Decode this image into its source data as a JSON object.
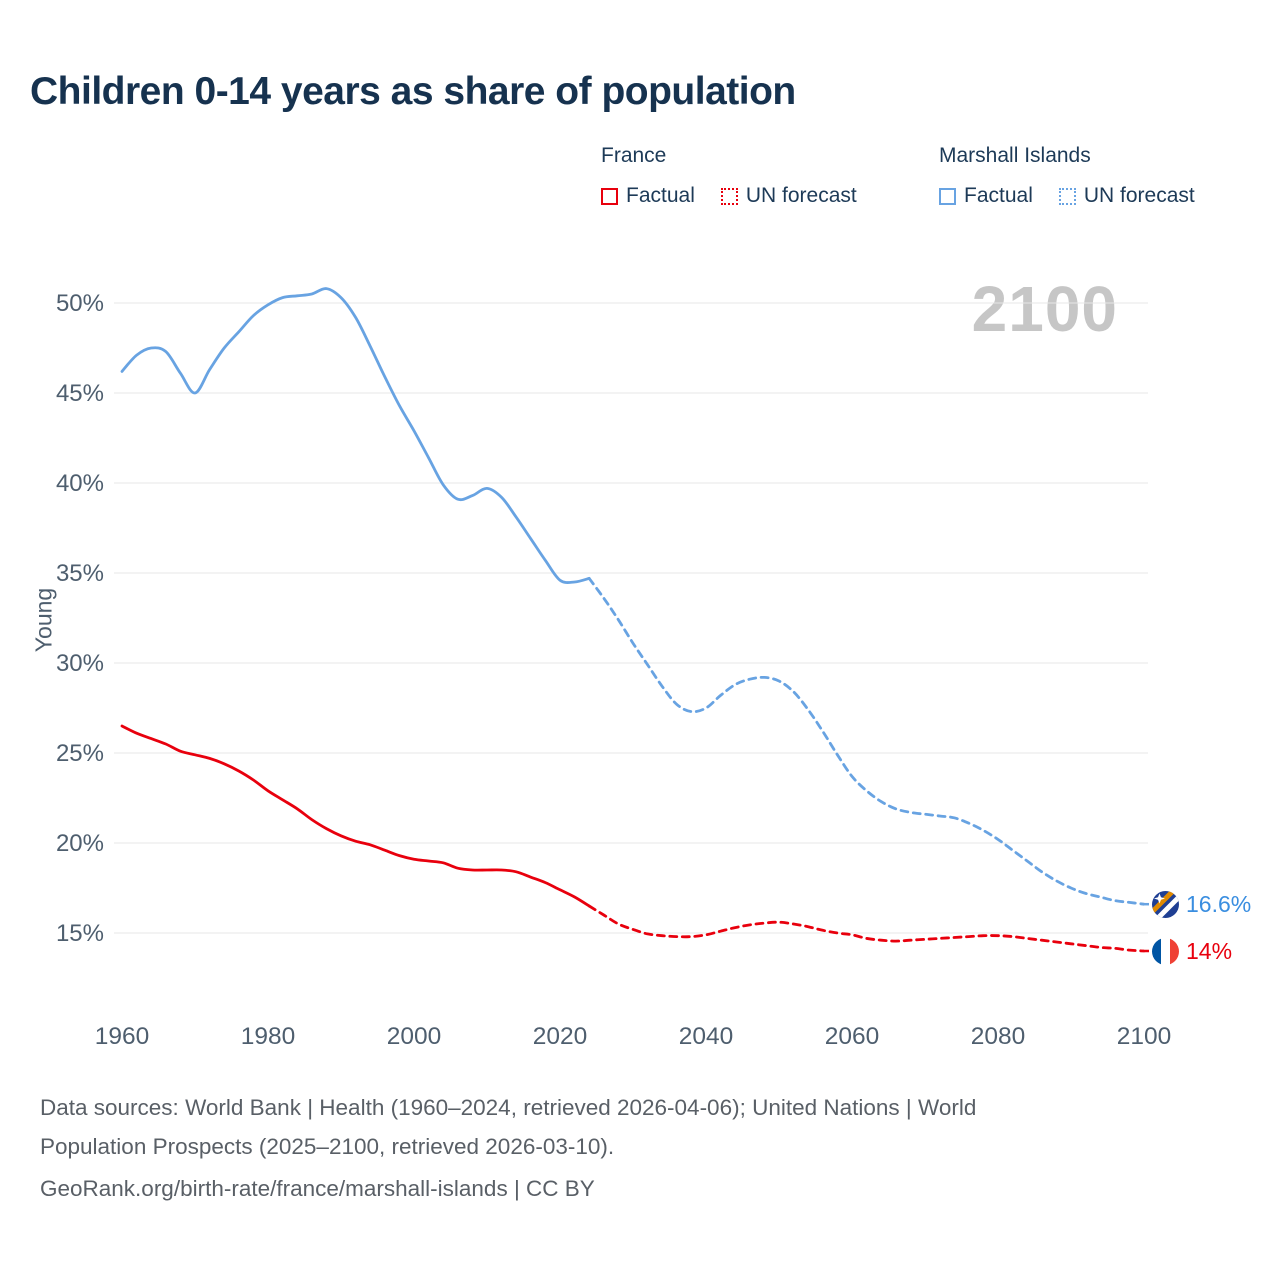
{
  "chart_data": {
    "type": "line",
    "title": "Children 0-14 years as share of population",
    "watermark": "2100",
    "xlabel": "",
    "ylabel": "Young",
    "xlim": [
      1959,
      2101
    ],
    "ylim": [
      13,
      52
    ],
    "grid": "horizontal",
    "legend_position": "top-right",
    "x_ticks": [
      1960,
      1980,
      2000,
      2020,
      2040,
      2060,
      2080,
      2100
    ],
    "y_ticks": [
      "15%",
      "20%",
      "25%",
      "30%",
      "35%",
      "40%",
      "45%",
      "50%"
    ],
    "legend": {
      "groups": [
        {
          "name": "France",
          "color": "#e8000d",
          "items": [
            {
              "label": "Factual",
              "line_style": "solid"
            },
            {
              "label": "UN forecast",
              "line_style": "dashed"
            }
          ]
        },
        {
          "name": "Marshall Islands",
          "color": "#68a3e2",
          "items": [
            {
              "label": "Factual",
              "line_style": "solid"
            },
            {
              "label": "UN forecast",
              "line_style": "dashed"
            }
          ]
        }
      ]
    },
    "series": [
      {
        "name": "Marshall Islands Factual",
        "color": "#68a3e2",
        "line_style": "solid",
        "x": [
          1960,
          1962,
          1964,
          1966,
          1968,
          1970,
          1972,
          1974,
          1976,
          1978,
          1980,
          1982,
          1984,
          1986,
          1988,
          1990,
          1992,
          1994,
          1996,
          1998,
          2000,
          2002,
          2004,
          2006,
          2008,
          2010,
          2012,
          2014,
          2016,
          2018,
          2020,
          2022,
          2024
        ],
        "y": [
          46.2,
          47.1,
          47.5,
          47.3,
          46.1,
          45.0,
          46.3,
          47.5,
          48.4,
          49.3,
          49.9,
          50.3,
          50.4,
          50.5,
          50.8,
          50.3,
          49.2,
          47.6,
          45.9,
          44.3,
          42.9,
          41.4,
          39.9,
          39.1,
          39.3,
          39.7,
          39.2,
          38.1,
          36.9,
          35.7,
          34.6,
          34.5,
          34.7
        ]
      },
      {
        "name": "Marshall Islands UN forecast",
        "color": "#68a3e2",
        "line_style": "dashed",
        "x": [
          2024,
          2026,
          2028,
          2030,
          2032,
          2034,
          2036,
          2038,
          2040,
          2042,
          2044,
          2046,
          2048,
          2050,
          2052,
          2054,
          2056,
          2058,
          2060,
          2062,
          2064,
          2066,
          2068,
          2070,
          2072,
          2074,
          2076,
          2078,
          2080,
          2082,
          2084,
          2086,
          2088,
          2090,
          2092,
          2094,
          2096,
          2098,
          2100
        ],
        "y": [
          34.7,
          33.6,
          32.4,
          31.1,
          29.9,
          28.7,
          27.7,
          27.3,
          27.5,
          28.2,
          28.8,
          29.1,
          29.2,
          29.0,
          28.4,
          27.4,
          26.2,
          24.9,
          23.7,
          22.9,
          22.3,
          21.9,
          21.7,
          21.6,
          21.5,
          21.4,
          21.1,
          20.7,
          20.2,
          19.6,
          19.0,
          18.4,
          17.9,
          17.5,
          17.2,
          17.0,
          16.8,
          16.7,
          16.6
        ]
      },
      {
        "name": "France Factual",
        "color": "#e8000d",
        "line_style": "solid",
        "x": [
          1960,
          1962,
          1964,
          1966,
          1968,
          1970,
          1972,
          1974,
          1976,
          1978,
          1980,
          1982,
          1984,
          1986,
          1988,
          1990,
          1992,
          1994,
          1996,
          1998,
          2000,
          2002,
          2004,
          2006,
          2008,
          2010,
          2012,
          2014,
          2016,
          2018,
          2020,
          2022,
          2024
        ],
        "y": [
          26.5,
          26.1,
          25.8,
          25.5,
          25.1,
          24.9,
          24.7,
          24.4,
          24.0,
          23.5,
          22.9,
          22.4,
          21.9,
          21.3,
          20.8,
          20.4,
          20.1,
          19.9,
          19.6,
          19.3,
          19.1,
          19.0,
          18.9,
          18.6,
          18.5,
          18.5,
          18.5,
          18.4,
          18.1,
          17.8,
          17.4,
          17.0,
          16.5
        ]
      },
      {
        "name": "France UN forecast",
        "color": "#e8000d",
        "line_style": "dashed",
        "x": [
          2024,
          2026,
          2028,
          2030,
          2032,
          2034,
          2036,
          2038,
          2040,
          2042,
          2044,
          2046,
          2048,
          2050,
          2052,
          2054,
          2056,
          2058,
          2060,
          2062,
          2064,
          2066,
          2068,
          2070,
          2072,
          2074,
          2076,
          2078,
          2080,
          2082,
          2084,
          2086,
          2088,
          2090,
          2092,
          2094,
          2096,
          2098,
          2100
        ],
        "y": [
          16.5,
          16.0,
          15.5,
          15.2,
          14.95,
          14.85,
          14.8,
          14.8,
          14.9,
          15.1,
          15.3,
          15.45,
          15.55,
          15.6,
          15.5,
          15.35,
          15.15,
          15.0,
          14.9,
          14.7,
          14.6,
          14.55,
          14.6,
          14.65,
          14.7,
          14.75,
          14.8,
          14.85,
          14.85,
          14.8,
          14.7,
          14.6,
          14.5,
          14.4,
          14.3,
          14.2,
          14.15,
          14.05,
          14.0
        ]
      }
    ],
    "end_labels": [
      {
        "for_series": "Marshall Islands UN forecast",
        "value": "16.6%",
        "color": "#3a8ee0",
        "flag": "marshall-islands"
      },
      {
        "for_series": "France UN forecast",
        "value": "14%",
        "color": "#e8000d",
        "flag": "france"
      }
    ]
  },
  "footer": {
    "lines": [
      "Data sources: World Bank | Health (1960–2024, retrieved 2026-04-06); United Nations | World",
      "Population Prospects (2025–2100, retrieved 2026-03-10).",
      "GeoRank.org/birth-rate/france/marshall-islands | CC BY"
    ]
  }
}
